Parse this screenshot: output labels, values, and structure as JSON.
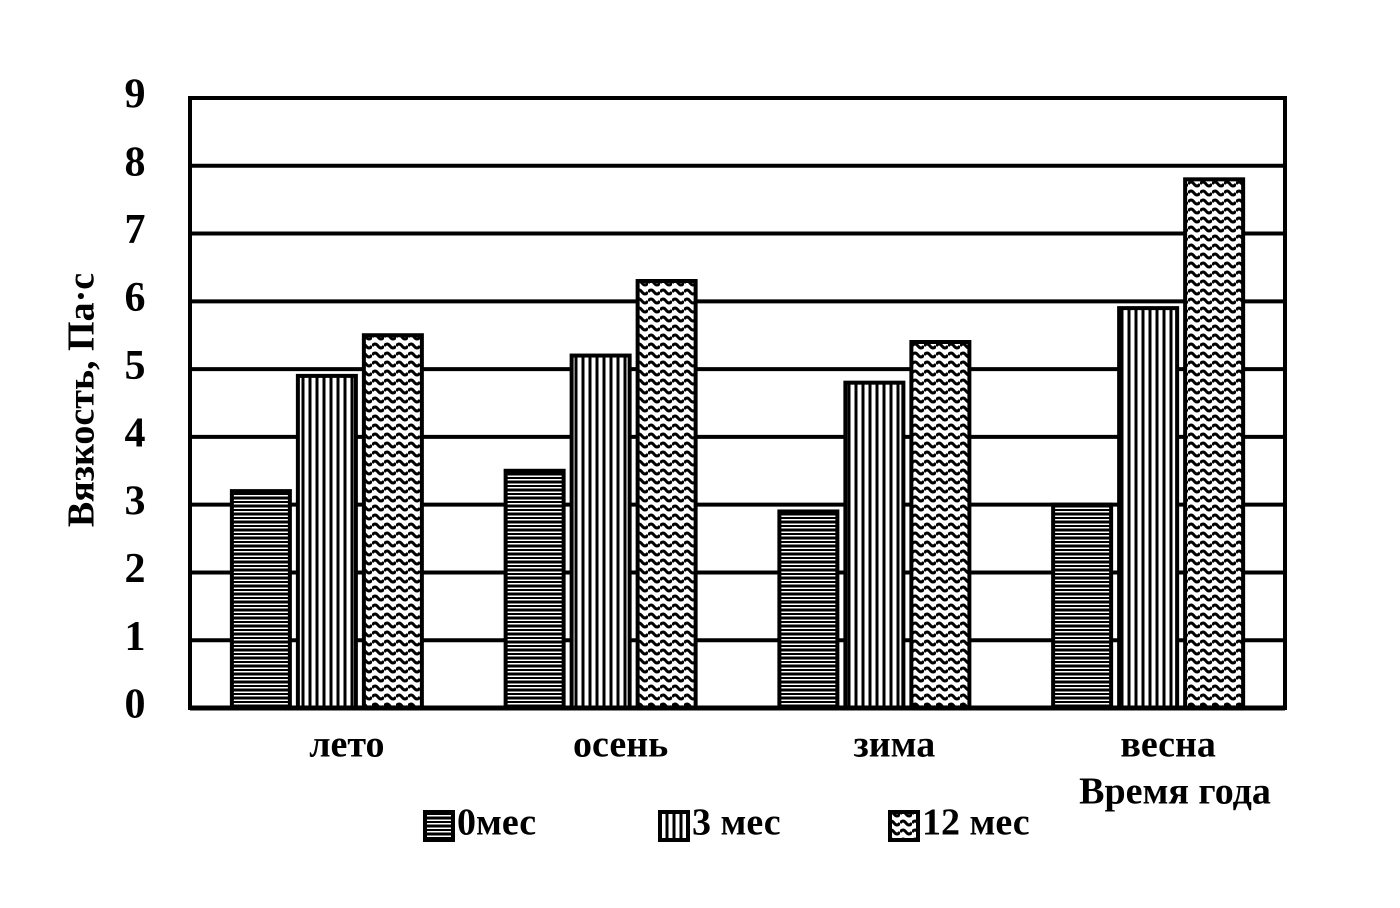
{
  "chart_data": {
    "type": "bar",
    "y_label": "Вязкость, Па·с",
    "x_label": "Время года",
    "categories": [
      "лето",
      "осень",
      "зима",
      "весна"
    ],
    "series": [
      {
        "name": "0мес",
        "color": "#000000",
        "pattern": "horizontal",
        "values": [
          3.2,
          3.5,
          2.9,
          3.0
        ]
      },
      {
        "name": "3 мес",
        "color": "#000000",
        "pattern": "vertical",
        "values": [
          4.9,
          5.2,
          4.8,
          5.9
        ]
      },
      {
        "name": "12 мес",
        "color": "#000000",
        "pattern": "wavy",
        "values": [
          5.5,
          6.3,
          5.4,
          7.8
        ]
      }
    ],
    "ylim": [
      0,
      9
    ],
    "yticks": [
      0,
      1,
      2,
      3,
      4,
      5,
      6,
      7,
      8,
      9
    ],
    "grid": true
  }
}
